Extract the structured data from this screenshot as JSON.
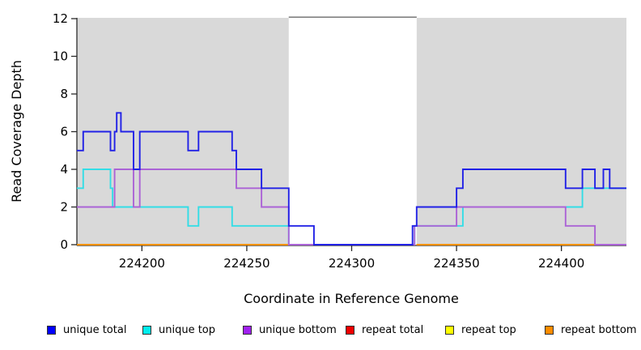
{
  "chart_data": {
    "type": "line",
    "subtype": "step-coverage",
    "title": "",
    "xlabel": "Coordinate in Reference Genome",
    "ylabel": "Read Coverage Depth",
    "xlim": [
      224169,
      224431
    ],
    "ylim": [
      0,
      12
    ],
    "x_ticks": [
      224200,
      224250,
      224300,
      224350,
      224400
    ],
    "y_ticks": [
      0,
      2,
      4,
      6,
      8,
      10,
      12
    ],
    "grid": "off",
    "legend_position": "bottom",
    "plot_background": "#d9d9d9",
    "no_data_region": {
      "start": 224270,
      "end": 224331,
      "fill": "#ffffff",
      "top_border_color": "#808080"
    },
    "axis_color": "#2b2b2b",
    "legend": [
      {
        "label": "unique total",
        "color": "#0000ff"
      },
      {
        "label": "unique top",
        "color": "#00eeee"
      },
      {
        "label": "unique bottom",
        "color": "#a020f0"
      },
      {
        "label": "repeat total",
        "color": "#ee0000"
      },
      {
        "label": "repeat top",
        "color": "#ffff00"
      },
      {
        "label": "repeat bottom",
        "color": "#ff8c00"
      }
    ],
    "series": [
      {
        "name": "unique total",
        "line_color": "#2121e6",
        "step": true,
        "segments": [
          {
            "end": 224431,
            "points": [
              [
                224169,
                5
              ],
              [
                224172,
                6
              ],
              [
                224185,
                5
              ],
              [
                224187,
                6
              ],
              [
                224188,
                7
              ],
              [
                224190,
                6
              ],
              [
                224196,
                4
              ],
              [
                224199,
                6
              ],
              [
                224222,
                5
              ],
              [
                224227,
                6
              ],
              [
                224243,
                5
              ],
              [
                224245,
                4
              ],
              [
                224257,
                3
              ],
              [
                224270,
                1
              ],
              [
                224282,
                0
              ],
              [
                224329,
                1
              ],
              [
                224331,
                2
              ],
              [
                224350,
                3
              ],
              [
                224353,
                4
              ],
              [
                224402,
                3
              ],
              [
                224410,
                4
              ],
              [
                224416,
                3
              ],
              [
                224420,
                4
              ],
              [
                224423,
                3
              ]
            ]
          }
        ]
      },
      {
        "name": "unique top",
        "line_color": "#33dde6",
        "step": true,
        "segments": [
          {
            "end": 224431,
            "points": [
              [
                224169,
                3
              ],
              [
                224172,
                4
              ],
              [
                224185,
                3
              ],
              [
                224186,
                2
              ],
              [
                224222,
                1
              ],
              [
                224227,
                2
              ],
              [
                224243,
                1
              ],
              [
                224270,
                0
              ],
              [
                224330,
                1
              ],
              [
                224353,
                2
              ],
              [
                224410,
                3
              ]
            ]
          }
        ]
      },
      {
        "name": "unique bottom",
        "line_color": "#ab63d6",
        "step": true,
        "segments": [
          {
            "end": 224431,
            "points": [
              [
                224169,
                2
              ],
              [
                224187,
                4
              ],
              [
                224196,
                2
              ],
              [
                224199,
                4
              ],
              [
                224245,
                3
              ],
              [
                224257,
                2
              ],
              [
                224270,
                0
              ],
              [
                224330,
                1
              ],
              [
                224350,
                2
              ],
              [
                224402,
                1
              ],
              [
                224416,
                0
              ]
            ]
          }
        ]
      },
      {
        "name": "repeat total",
        "line_color": "#ee0000",
        "step": true,
        "segments": [
          {
            "end": 224270,
            "points": [
              [
                224169,
                0
              ]
            ]
          },
          {
            "end": 224431,
            "points": [
              [
                224331,
                0
              ]
            ]
          }
        ]
      },
      {
        "name": "repeat top",
        "line_color": "#ffee00",
        "step": true,
        "segments": [
          {
            "end": 224270,
            "points": [
              [
                224169,
                0
              ]
            ]
          },
          {
            "end": 224431,
            "points": [
              [
                224331,
                0
              ]
            ]
          }
        ]
      },
      {
        "name": "repeat bottom",
        "line_color": "#ff9100",
        "step": true,
        "segments": [
          {
            "end": 224270,
            "points": [
              [
                224169,
                0
              ]
            ]
          },
          {
            "end": 224431,
            "points": [
              [
                224331,
                0
              ]
            ]
          }
        ]
      }
    ]
  }
}
